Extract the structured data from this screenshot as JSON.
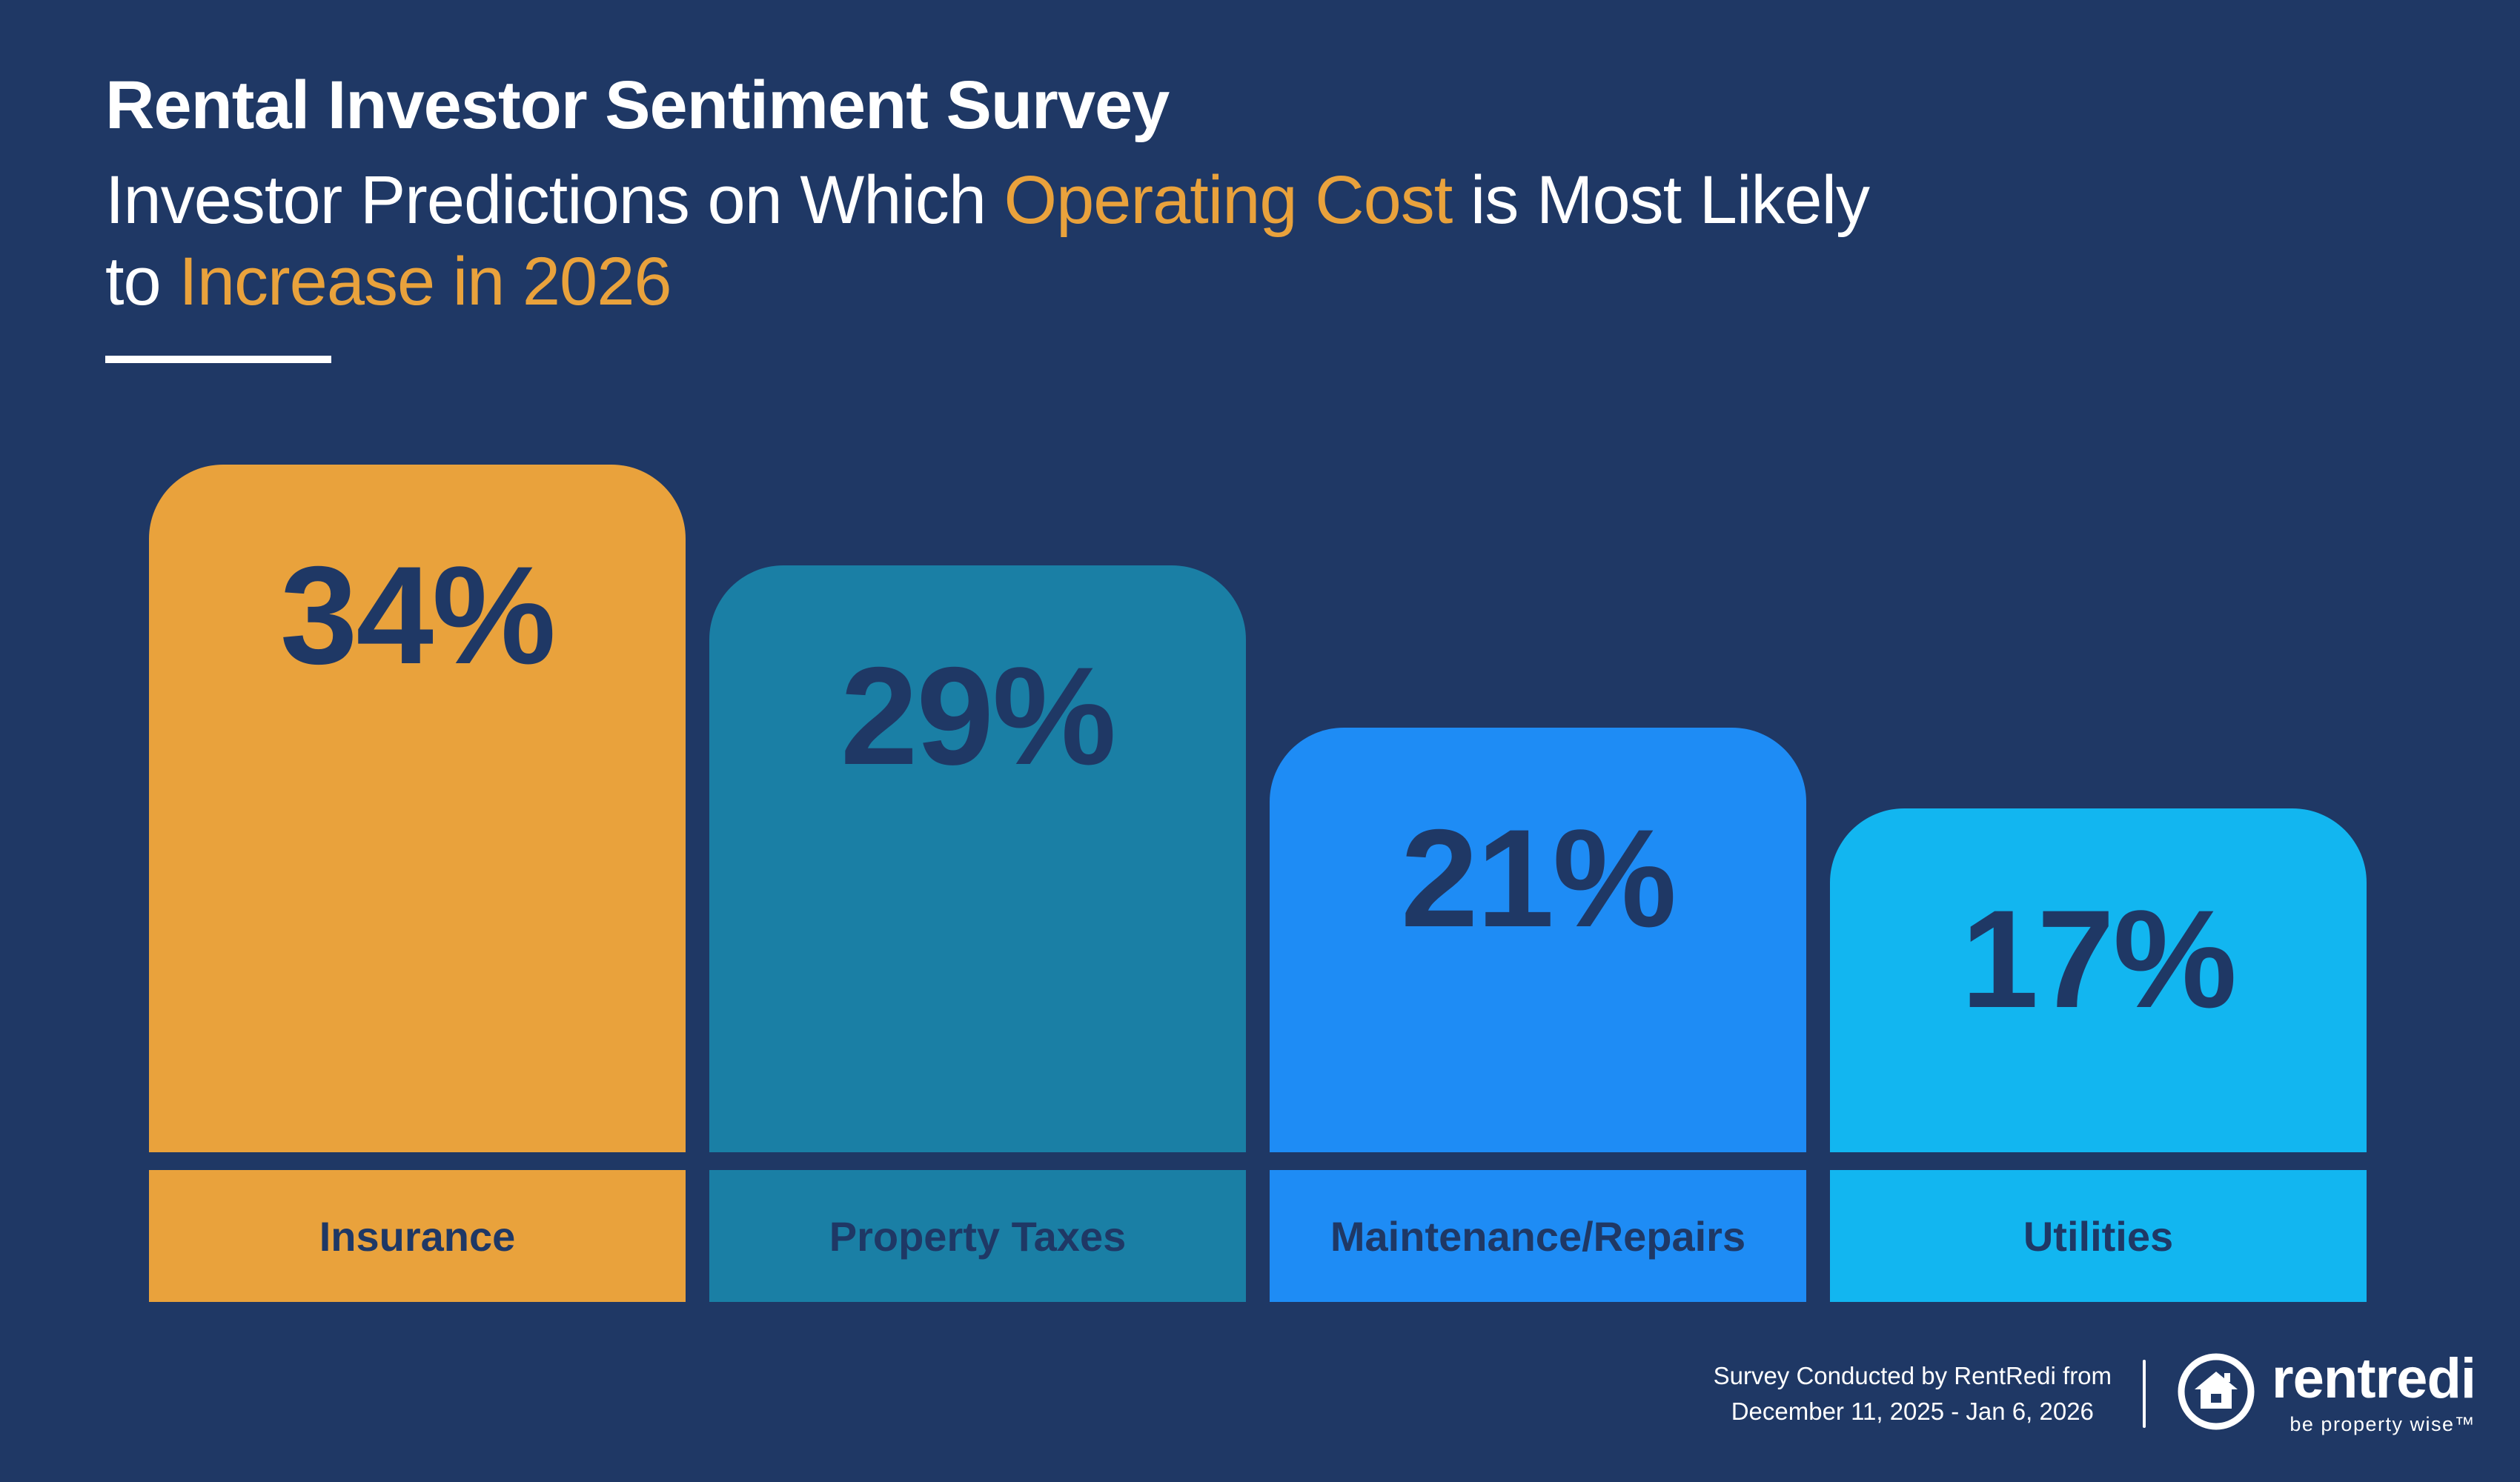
{
  "colors": {
    "background": "#1F3865",
    "accent_orange": "#E9A23C",
    "text_light": "#FFFFFF",
    "navy_text": "#1F3865"
  },
  "header": {
    "title": "Rental Investor Sentiment Survey",
    "subtitle_line1_part1": "Investor Predictions on Which ",
    "subtitle_line1_highlight": "Operating Cost",
    "subtitle_line1_part2": " is Most Likely",
    "subtitle_line2_part1": "to ",
    "subtitle_line2_highlight": "Increase in 2026"
  },
  "chart_data": {
    "type": "bar",
    "title": "Rental Investor Sentiment Survey",
    "subtitle": "Investor Predictions on Which Operating Cost is Most Likely to Increase in 2026",
    "categories": [
      "Insurance",
      "Property Taxes",
      "Maintenance/Repairs",
      "Utilities"
    ],
    "values": [
      34,
      29,
      21,
      17
    ],
    "value_labels": [
      "34%",
      "29%",
      "21%",
      "17%"
    ],
    "colors": [
      "#E9A23C",
      "#1A7FA5",
      "#1E8CF5",
      "#12B6F0"
    ],
    "xlabel": "",
    "ylabel": "",
    "ylim": [
      0,
      40
    ],
    "grid": false,
    "legend": false
  },
  "footer": {
    "survey_note_line1": "Survey Conducted by RentRedi from",
    "survey_note_line2": "December 11, 2025 - Jan 6, 2026",
    "brand": "rentredi",
    "tagline": "be property wise™",
    "logo_icon": "house-circle-icon"
  }
}
